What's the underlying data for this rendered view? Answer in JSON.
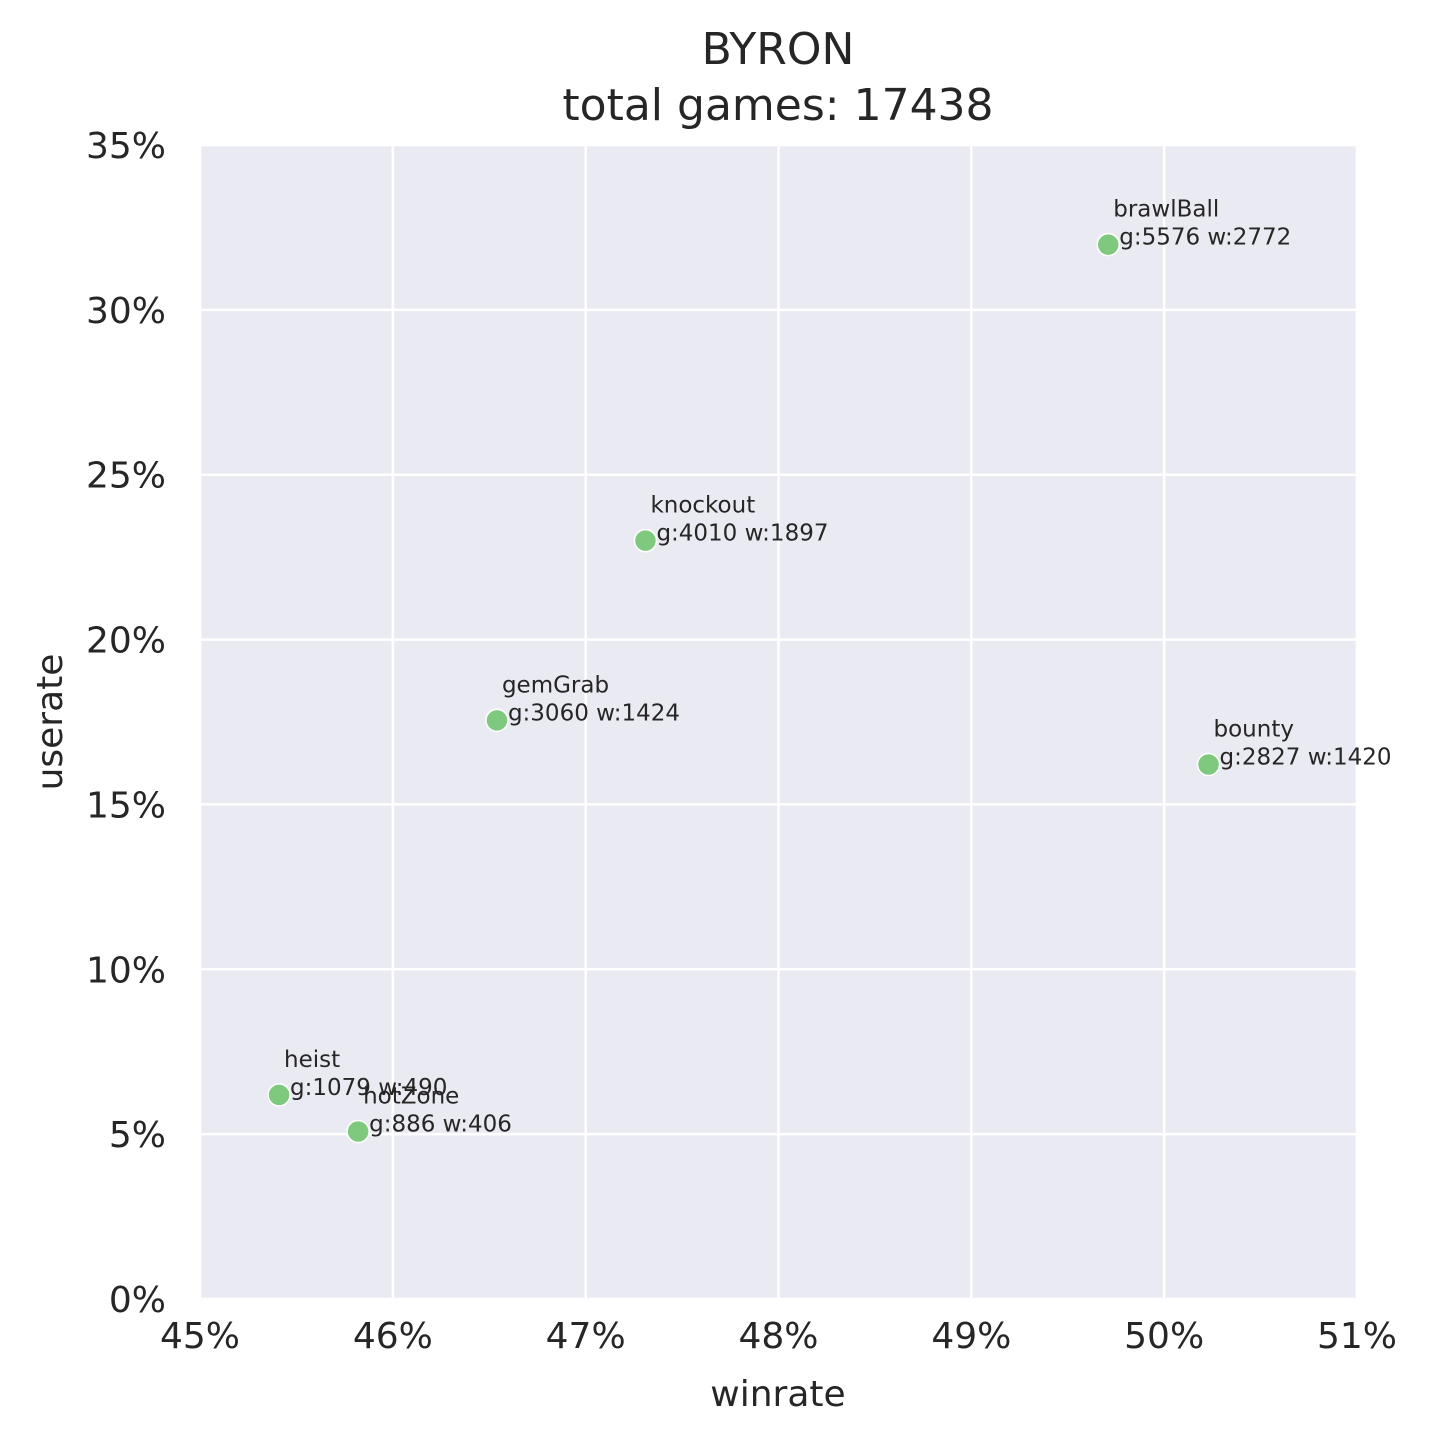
{
  "chart_data": {
    "type": "scatter",
    "title": "BYRON",
    "subtitle": "total games: 17438",
    "xlabel": "winrate",
    "ylabel": "userate",
    "xlim": [
      45,
      51
    ],
    "ylim": [
      0,
      35
    ],
    "x_ticks": [
      45,
      46,
      47,
      48,
      49,
      50,
      51
    ],
    "y_ticks": [
      0,
      5,
      10,
      15,
      20,
      25,
      30,
      35
    ],
    "x_tick_labels": [
      "45%",
      "46%",
      "47%",
      "48%",
      "49%",
      "50%",
      "51%"
    ],
    "y_tick_labels": [
      "0%",
      "5%",
      "10%",
      "15%",
      "20%",
      "25%",
      "30%",
      "35%"
    ],
    "grid": true,
    "background": "#eaeaf2",
    "point_color": "#7fc97f",
    "points": [
      {
        "name": "brawlBall",
        "stats": "g:5576 w:2772",
        "x": 49.71,
        "y": 31.98
      },
      {
        "name": "knockout",
        "stats": "g:4010 w:1897",
        "x": 47.31,
        "y": 23.0
      },
      {
        "name": "gemGrab",
        "stats": "g:3060 w:1424",
        "x": 46.54,
        "y": 17.55
      },
      {
        "name": "bounty",
        "stats": "g:2827 w:1420",
        "x": 50.23,
        "y": 16.21
      },
      {
        "name": "heist",
        "stats": "g:1079 w:490",
        "x": 45.41,
        "y": 6.19
      },
      {
        "name": "hotZone",
        "stats": "g:886 w:406",
        "x": 45.82,
        "y": 5.08
      }
    ]
  }
}
